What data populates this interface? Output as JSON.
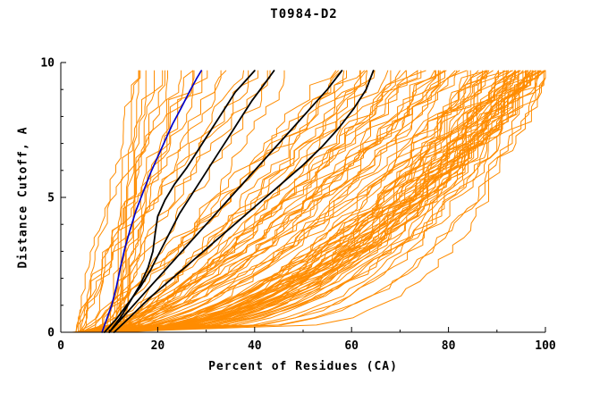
{
  "chart_data": {
    "type": "line",
    "title": "T0984-D2",
    "xlabel": "Percent of Residues (CA)",
    "ylabel": "Distance Cutoff, A",
    "xlim": [
      0,
      100
    ],
    "ylim": [
      0,
      10
    ],
    "y_end": 9.7,
    "x_major_ticks": [
      0,
      20,
      40,
      60,
      80,
      100
    ],
    "x_minor_ticks": [
      10,
      30,
      50,
      70,
      90
    ],
    "y_major_ticks": [
      0,
      5,
      10
    ],
    "y_minor_ticks": [
      1,
      2,
      3,
      4,
      6,
      7,
      8,
      9
    ],
    "axis_color": "#000000",
    "background": "#ffffff",
    "series": [
      {
        "name": "black-model-1",
        "color": "#000000",
        "width": 1.8,
        "points": [
          [
            10,
            0
          ],
          [
            12.5,
            0.6
          ],
          [
            14.5,
            1.2
          ],
          [
            16.5,
            1.8
          ],
          [
            18,
            2.4
          ],
          [
            19,
            3.0
          ],
          [
            19.5,
            3.7
          ],
          [
            20,
            4.3
          ],
          [
            21.5,
            4.9
          ],
          [
            23.5,
            5.5
          ],
          [
            26,
            6.1
          ],
          [
            28.5,
            6.8
          ],
          [
            31,
            7.5
          ],
          [
            33.5,
            8.2
          ],
          [
            36,
            8.9
          ],
          [
            38.5,
            9.4
          ],
          [
            40,
            9.7
          ]
        ]
      },
      {
        "name": "black-model-2",
        "color": "#000000",
        "width": 1.8,
        "points": [
          [
            9,
            0
          ],
          [
            11.5,
            0.5
          ],
          [
            14,
            1.1
          ],
          [
            16.5,
            1.7
          ],
          [
            18.5,
            2.3
          ],
          [
            20.5,
            3.0
          ],
          [
            22.5,
            3.7
          ],
          [
            24.5,
            4.4
          ],
          [
            27,
            5.1
          ],
          [
            29.5,
            5.8
          ],
          [
            32,
            6.5
          ],
          [
            34.5,
            7.2
          ],
          [
            37,
            7.9
          ],
          [
            39.5,
            8.6
          ],
          [
            42,
            9.2
          ],
          [
            44,
            9.7
          ]
        ]
      },
      {
        "name": "black-model-3",
        "color": "#000000",
        "width": 1.8,
        "points": [
          [
            10,
            0
          ],
          [
            13,
            0.6
          ],
          [
            16.5,
            1.3
          ],
          [
            20,
            2.0
          ],
          [
            23.5,
            2.7
          ],
          [
            27,
            3.4
          ],
          [
            30.5,
            4.1
          ],
          [
            34,
            4.8
          ],
          [
            37.5,
            5.5
          ],
          [
            41,
            6.2
          ],
          [
            44.5,
            6.9
          ],
          [
            48,
            7.6
          ],
          [
            51.5,
            8.3
          ],
          [
            55,
            9.0
          ],
          [
            58,
            9.7
          ]
        ]
      },
      {
        "name": "black-model-4",
        "color": "#000000",
        "width": 1.8,
        "points": [
          [
            11,
            0
          ],
          [
            14.5,
            0.6
          ],
          [
            18.5,
            1.3
          ],
          [
            23,
            2.0
          ],
          [
            27.5,
            2.7
          ],
          [
            32,
            3.4
          ],
          [
            36.5,
            4.1
          ],
          [
            41,
            4.8
          ],
          [
            45.5,
            5.5
          ],
          [
            50,
            6.2
          ],
          [
            54,
            6.9
          ],
          [
            57.5,
            7.6
          ],
          [
            60.5,
            8.3
          ],
          [
            63,
            9.0
          ],
          [
            64.5,
            9.7
          ]
        ]
      },
      {
        "name": "blue-model",
        "color": "#0000cc",
        "width": 1.7,
        "points": [
          [
            8.5,
            0
          ],
          [
            9.5,
            0.5
          ],
          [
            10.5,
            1.0
          ],
          [
            11.5,
            1.7
          ],
          [
            12.3,
            2.4
          ],
          [
            13.2,
            3.1
          ],
          [
            14.3,
            3.8
          ],
          [
            15.5,
            4.5
          ],
          [
            17,
            5.2
          ],
          [
            18.5,
            5.9
          ],
          [
            20,
            6.5
          ],
          [
            21.5,
            7.1
          ],
          [
            23,
            7.7
          ],
          [
            24.8,
            8.3
          ],
          [
            26.5,
            8.9
          ],
          [
            28,
            9.4
          ],
          [
            29,
            9.7
          ]
        ]
      }
    ],
    "orange_family": {
      "name": "other-models",
      "color": "#ff8c00",
      "width": 1.0,
      "count": 115,
      "seed": 7,
      "points_per_curve": 36,
      "x_start_range": [
        3,
        13
      ],
      "x_top_buckets": [
        {
          "range": [
            13,
            35
          ],
          "weight": 0.14
        },
        {
          "range": [
            35,
            70
          ],
          "weight": 0.2
        },
        {
          "range": [
            70,
            90
          ],
          "weight": 0.26
        },
        {
          "range": [
            90,
            100
          ],
          "weight": 0.4
        }
      ],
      "exponent": {
        "base": 0.18,
        "slope": 1.3,
        "jitter": 0.35,
        "min": 0.1
      },
      "wiggle": 2.0
    }
  }
}
